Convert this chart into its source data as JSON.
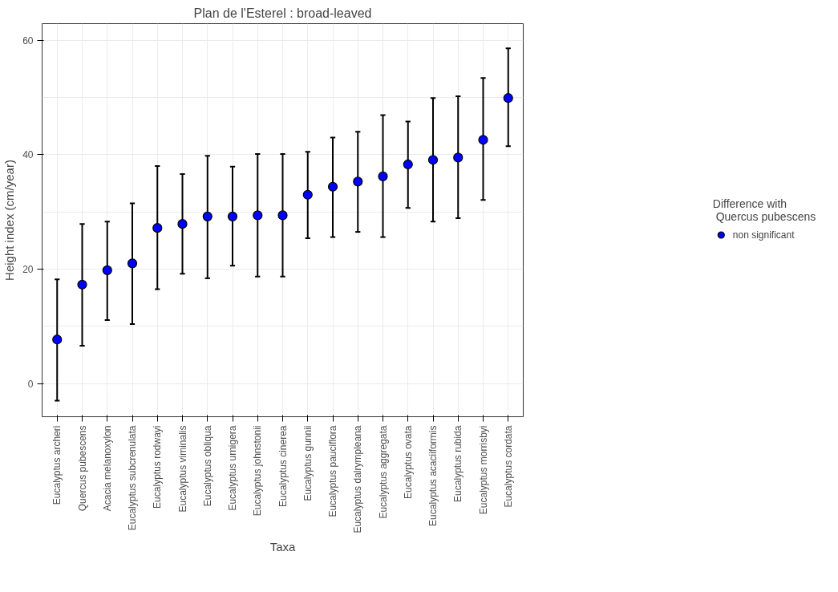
{
  "chart_data": {
    "type": "scatter",
    "title": "Plan de l'Esterel : broad-leaved",
    "xlabel": "Taxa",
    "ylabel": "Height index (cm/year)",
    "legend_title": "Difference with\n Quercus pubescens",
    "categories": [
      "Eucalyptus archeri",
      "Quercus pubescens",
      "Acacia melanoxylon",
      "Eucalyptus subcrenulata",
      "Eucalyptus rodwayi",
      "Eucalyptus viminalis",
      "Eucalyptus obliqua",
      "Eucalyptus urnigera",
      "Eucalyptus johnstonii",
      "Eucalyptus cinerea",
      "Eucalyptus gunnii",
      "Eucalyptus pauciflora",
      "Eucalyptus dalrympleana",
      "Eucalyptus aggregata",
      "Eucalyptus ovata",
      "Eucalyptus acaciiformis",
      "Eucalyptus rubida",
      "Eucalyptus morrisbyi",
      "Eucalyptus cordata"
    ],
    "series": [
      {
        "name": "non significant",
        "color": "#0000ff",
        "values": [
          7.7,
          17.3,
          19.8,
          21.0,
          27.2,
          27.9,
          29.2,
          29.2,
          29.4,
          29.4,
          33.0,
          34.4,
          35.3,
          36.2,
          38.3,
          39.1,
          39.5,
          42.6,
          49.9
        ],
        "errors": [
          [
            -3.0,
            18.2
          ],
          [
            6.6,
            27.9
          ],
          [
            11.1,
            28.3
          ],
          [
            10.4,
            31.5
          ],
          [
            16.5,
            38.0
          ],
          [
            19.2,
            36.6
          ],
          [
            18.4,
            39.8
          ],
          [
            20.6,
            37.9
          ],
          [
            18.7,
            40.1
          ],
          [
            18.7,
            40.1
          ],
          [
            25.4,
            40.5
          ],
          [
            25.6,
            43.0
          ],
          [
            26.5,
            44.0
          ],
          [
            25.6,
            46.9
          ],
          [
            30.7,
            45.8
          ],
          [
            28.3,
            49.9
          ],
          [
            28.9,
            50.2
          ],
          [
            32.1,
            53.4
          ],
          [
            41.5,
            58.6
          ]
        ]
      }
    ],
    "ylim": [
      -5.8,
      62.9
    ],
    "yticks": [
      0,
      20,
      40,
      60
    ],
    "grid": true,
    "legend": "right",
    "marker": "circle"
  }
}
